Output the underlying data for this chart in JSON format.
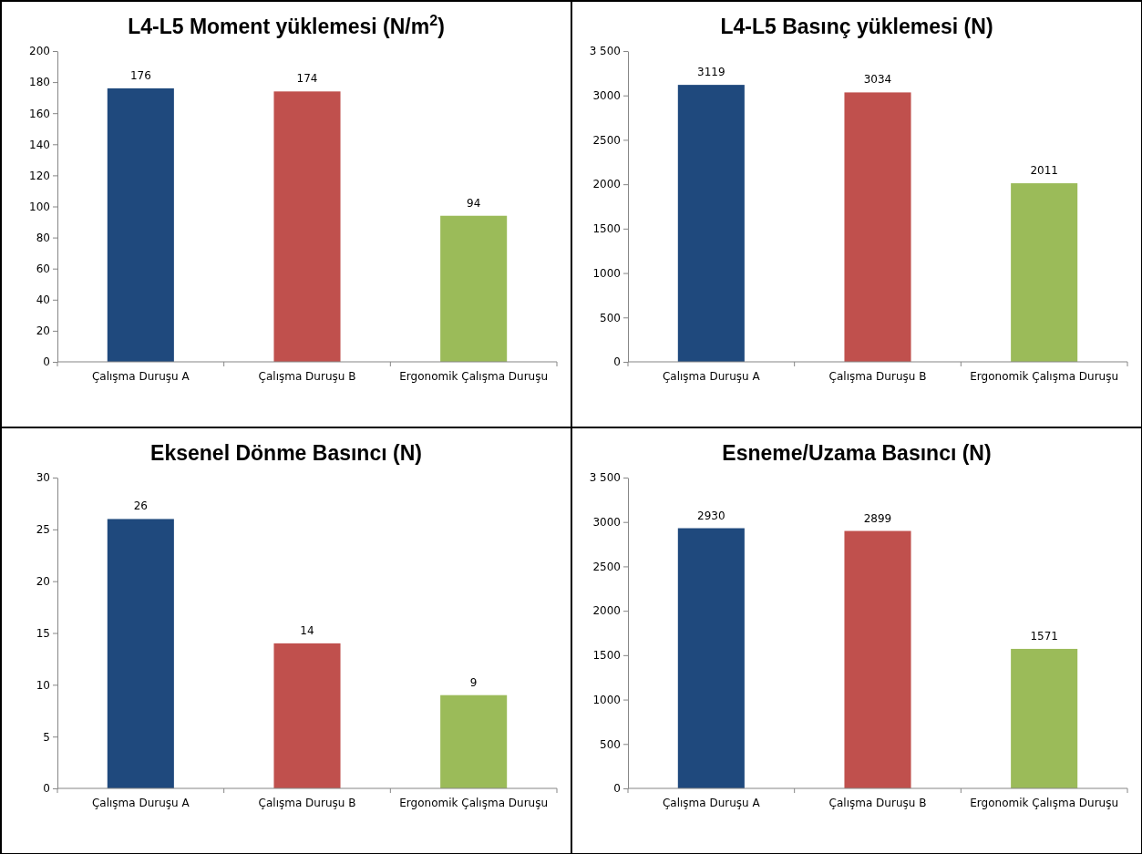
{
  "chart_data": [
    {
      "type": "bar",
      "title": "L4-L5 Moment yüklemesi (N/m$^{2}$)",
      "categories": [
        "Çalışma Duruşu A",
        "Çalışma Duruşu B",
        "Ergonomik Çalışma Duruşu"
      ],
      "values": [
        176,
        174,
        94
      ],
      "colors": [
        "#1f497d",
        "#c0504d",
        "#9bbb59"
      ],
      "ylim": [
        0,
        200
      ],
      "yticks": [
        0,
        20,
        40,
        60,
        80,
        100,
        120,
        140,
        160,
        180,
        200
      ],
      "data_labels": true
    },
    {
      "type": "bar",
      "title": "L4-L5 Basınç yüklemesi (N)",
      "categories": [
        "Çalışma Duruşu A",
        "Çalışma Duruşu B",
        "Ergonomik Çalışma Duruşu"
      ],
      "values": [
        3119,
        3034,
        2011
      ],
      "colors": [
        "#1f497d",
        "#c0504d",
        "#9bbb59"
      ],
      "ylim": [
        0,
        3500
      ],
      "yticks": [
        0,
        500,
        1000,
        1500,
        2000,
        2500,
        3000,
        {
          "value": 3500,
          "label": "3 500"
        }
      ],
      "data_labels": true
    },
    {
      "type": "bar",
      "title": "Eksenel Dönme Basıncı (N)",
      "categories": [
        "Çalışma Duruşu A",
        "Çalışma Duruşu B",
        "Ergonomik Çalışma Duruşu"
      ],
      "values": [
        26,
        14,
        9
      ],
      "colors": [
        "#1f497d",
        "#c0504d",
        "#9bbb59"
      ],
      "ylim": [
        0,
        30
      ],
      "yticks": [
        0,
        5,
        10,
        15,
        20,
        25,
        30
      ],
      "data_labels": true
    },
    {
      "type": "bar",
      "title": "Esneme/Uzama Basıncı (N)",
      "categories": [
        "Çalışma Duruşu A",
        "Çalışma Duruşu B",
        "Ergonomik Çalışma Duruşu"
      ],
      "values": [
        2930,
        2899,
        1571
      ],
      "colors": [
        "#1f497d",
        "#c0504d",
        "#9bbb59"
      ],
      "ylim": [
        0,
        3500
      ],
      "yticks": [
        0,
        500,
        1000,
        1500,
        2000,
        2500,
        3000,
        {
          "value": 3500,
          "label": "3 500"
        }
      ],
      "data_labels": true
    }
  ]
}
